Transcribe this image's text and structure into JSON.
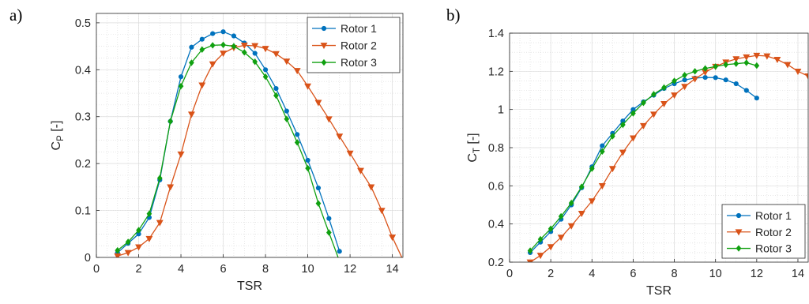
{
  "chart_data": [
    {
      "panel_label": "a)",
      "type": "line",
      "xlabel": "TSR",
      "ylabel_main": "C",
      "ylabel_sub": "P",
      "ylabel_unit": " [-]",
      "xlim": [
        0,
        14.5
      ],
      "ylim": [
        0,
        0.52
      ],
      "xticks": [
        0,
        2,
        4,
        6,
        8,
        10,
        12,
        14
      ],
      "yticks": [
        0,
        0.1,
        0.2,
        0.3,
        0.4,
        0.5
      ],
      "xtick_labels": [
        "0",
        "2",
        "4",
        "6",
        "8",
        "10",
        "12",
        "14"
      ],
      "ytick_labels": [
        "0",
        "0.1",
        "0.2",
        "0.3",
        "0.4",
        "0.5"
      ],
      "grid": true,
      "legend_position": "top-right",
      "series": [
        {
          "name": "Rotor 1",
          "color": "#0072BD",
          "marker": "circle",
          "x": [
            1,
            1.5,
            2,
            2.5,
            3,
            3.5,
            4,
            4.5,
            5,
            5.5,
            6,
            6.5,
            7,
            7.5,
            8,
            8.5,
            9,
            9.5,
            10,
            10.5,
            11,
            11.5
          ],
          "y": [
            0.01,
            0.03,
            0.05,
            0.085,
            0.165,
            0.29,
            0.385,
            0.448,
            0.465,
            0.477,
            0.481,
            0.472,
            0.457,
            0.435,
            0.4,
            0.36,
            0.312,
            0.262,
            0.207,
            0.148,
            0.083,
            0.013
          ]
        },
        {
          "name": "Rotor 2",
          "color": "#D95319",
          "marker": "triangle-down",
          "x": [
            1,
            1.5,
            2,
            2.5,
            3,
            3.5,
            4,
            4.5,
            5,
            5.5,
            6,
            6.5,
            7,
            7.5,
            8,
            8.5,
            9,
            9.5,
            10,
            10.5,
            11,
            11.5,
            12,
            12.5,
            13,
            13.5,
            14,
            14.5
          ],
          "y": [
            0.003,
            0.01,
            0.022,
            0.04,
            0.074,
            0.15,
            0.22,
            0.305,
            0.367,
            0.412,
            0.435,
            0.447,
            0.452,
            0.451,
            0.445,
            0.434,
            0.418,
            0.398,
            0.365,
            0.33,
            0.295,
            0.258,
            0.222,
            0.185,
            0.15,
            0.1,
            0.043,
            -0.005
          ]
        },
        {
          "name": "Rotor 3",
          "color": "#10A010",
          "marker": "diamond",
          "x": [
            1,
            1.5,
            2,
            2.5,
            3,
            3.5,
            4,
            4.5,
            5,
            5.5,
            6,
            6.5,
            7,
            7.5,
            8,
            8.5,
            9,
            9.5,
            10,
            10.5,
            11,
            11.5
          ],
          "y": [
            0.015,
            0.033,
            0.058,
            0.093,
            0.169,
            0.29,
            0.365,
            0.415,
            0.443,
            0.452,
            0.453,
            0.45,
            0.437,
            0.417,
            0.385,
            0.345,
            0.295,
            0.245,
            0.19,
            0.115,
            0.053,
            -0.008
          ]
        }
      ]
    },
    {
      "panel_label": "b)",
      "type": "line",
      "xlabel": "TSR",
      "ylabel_main": "C",
      "ylabel_sub": "T",
      "ylabel_unit": " [-]",
      "xlim": [
        0,
        14.5
      ],
      "ylim": [
        0.2,
        1.4
      ],
      "xticks": [
        0,
        2,
        4,
        6,
        8,
        10,
        12,
        14
      ],
      "yticks": [
        0.2,
        0.4,
        0.6,
        0.8,
        1.0,
        1.2,
        1.4
      ],
      "xtick_labels": [
        "0",
        "2",
        "4",
        "6",
        "8",
        "10",
        "12",
        "14"
      ],
      "ytick_labels": [
        "0.2",
        "0.4",
        "0.6",
        "0.8",
        "1",
        "1.2",
        "1.4"
      ],
      "grid": true,
      "legend_position": "bottom-right",
      "series": [
        {
          "name": "Rotor 1",
          "color": "#0072BD",
          "marker": "circle",
          "x": [
            1,
            1.5,
            2,
            2.5,
            3,
            3.5,
            4,
            4.5,
            5,
            5.5,
            6,
            6.5,
            7,
            7.5,
            8,
            8.5,
            9,
            9.5,
            10,
            10.5,
            11,
            11.5,
            12
          ],
          "y": [
            0.25,
            0.305,
            0.36,
            0.425,
            0.5,
            0.59,
            0.7,
            0.81,
            0.875,
            0.94,
            1.0,
            1.04,
            1.075,
            1.11,
            1.135,
            1.155,
            1.165,
            1.168,
            1.167,
            1.155,
            1.135,
            1.1,
            1.06
          ]
        },
        {
          "name": "Rotor 2",
          "color": "#D95319",
          "marker": "triangle-down",
          "x": [
            1,
            1.5,
            2,
            2.5,
            3,
            3.5,
            4,
            4.5,
            5,
            5.5,
            6,
            6.5,
            7,
            7.5,
            8,
            8.5,
            9,
            9.5,
            10,
            10.5,
            11,
            11.5,
            12,
            12.5,
            13,
            13.5,
            14,
            14.5
          ],
          "y": [
            0.2,
            0.235,
            0.28,
            0.33,
            0.39,
            0.455,
            0.52,
            0.6,
            0.69,
            0.775,
            0.85,
            0.915,
            0.975,
            1.03,
            1.075,
            1.12,
            1.16,
            1.195,
            1.225,
            1.248,
            1.265,
            1.275,
            1.283,
            1.28,
            1.262,
            1.235,
            1.2,
            1.175
          ]
        },
        {
          "name": "Rotor 3",
          "color": "#10A010",
          "marker": "diamond",
          "x": [
            1,
            1.5,
            2,
            2.5,
            3,
            3.5,
            4,
            4.5,
            5,
            5.5,
            6,
            6.5,
            7,
            7.5,
            8,
            8.5,
            9,
            9.5,
            10,
            10.5,
            11,
            11.5,
            12
          ],
          "y": [
            0.26,
            0.32,
            0.375,
            0.44,
            0.51,
            0.595,
            0.69,
            0.78,
            0.86,
            0.92,
            0.98,
            1.035,
            1.08,
            1.115,
            1.15,
            1.18,
            1.2,
            1.215,
            1.225,
            1.235,
            1.24,
            1.245,
            1.23
          ]
        }
      ]
    }
  ]
}
